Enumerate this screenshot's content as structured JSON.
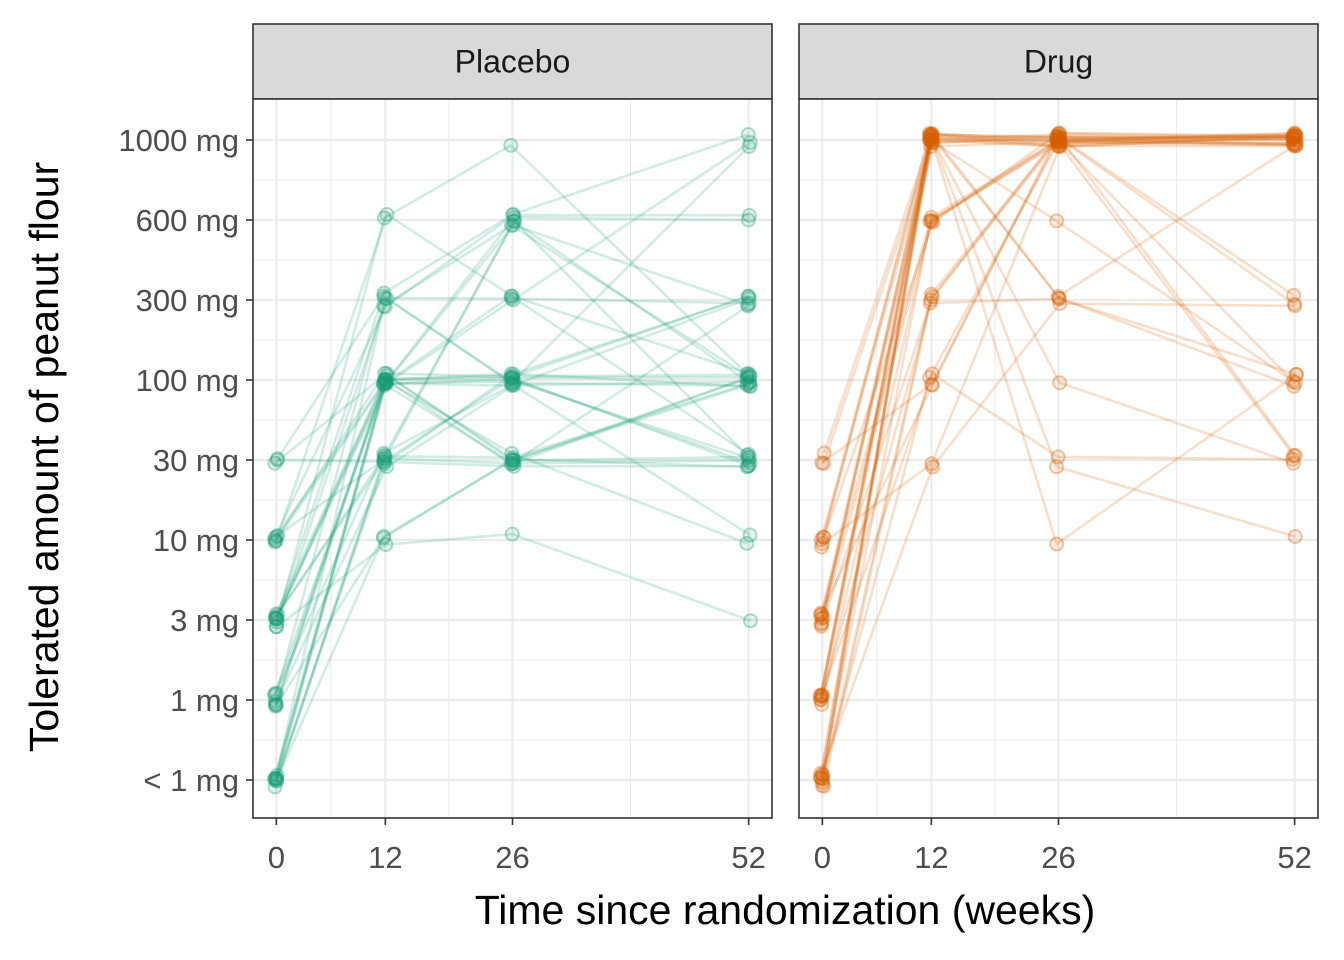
{
  "chart_data": {
    "type": "line",
    "xlabel": "Time since randomization (weeks)",
    "ylabel": "Tolerated amount of peanut flour",
    "x_ticks": [
      0,
      12,
      26,
      52
    ],
    "x_tick_labels": [
      "0",
      "12",
      "26",
      "52"
    ],
    "y_categories": [
      "< 1 mg",
      "1 mg",
      "3 mg",
      "10 mg",
      "30 mg",
      "100 mg",
      "300 mg",
      "600 mg",
      "1000 mg"
    ],
    "grid": true,
    "legend": "none",
    "panels": [
      {
        "name": "Placebo",
        "color": "#1b9e77",
        "series": [
          {
            "x": [
              0,
              12,
              26,
              52
            ],
            "y": [
              "< 1 mg",
              "10 mg",
              "30 mg",
              "100 mg"
            ]
          },
          {
            "x": [
              0,
              12,
              26,
              52
            ],
            "y": [
              "< 1 mg",
              "30 mg",
              "100 mg",
              "300 mg"
            ]
          },
          {
            "x": [
              0,
              12,
              26,
              52
            ],
            "y": [
              "< 1 mg",
              "100 mg",
              "100 mg",
              "100 mg"
            ]
          },
          {
            "x": [
              0,
              12,
              26,
              52
            ],
            "y": [
              "< 1 mg",
              "100 mg",
              "30 mg",
              "30 mg"
            ]
          },
          {
            "x": [
              0,
              12,
              26,
              52
            ],
            "y": [
              "< 1 mg",
              "30 mg",
              "30 mg",
              "100 mg"
            ]
          },
          {
            "x": [
              0,
              12,
              26,
              52
            ],
            "y": [
              "< 1 mg",
              "300 mg",
              "600 mg",
              "100 mg"
            ]
          },
          {
            "x": [
              0,
              12,
              26,
              52
            ],
            "y": [
              "< 1 mg",
              "100 mg",
              "300 mg",
              "30 mg"
            ]
          },
          {
            "x": [
              0,
              12,
              26,
              52
            ],
            "y": [
              "< 1 mg",
              "100 mg",
              "600 mg",
              "600 mg"
            ]
          },
          {
            "x": [
              0,
              12,
              26,
              52
            ],
            "y": [
              "1 mg",
              "100 mg",
              "100 mg",
              "100 mg"
            ]
          },
          {
            "x": [
              0,
              12,
              26,
              52
            ],
            "y": [
              "1 mg",
              "30 mg",
              "100 mg",
              "100 mg"
            ]
          },
          {
            "x": [
              0,
              12,
              26,
              52
            ],
            "y": [
              "1 mg",
              "300 mg",
              "300 mg",
              "300 mg"
            ]
          },
          {
            "x": [
              0,
              12,
              26,
              52
            ],
            "y": [
              "1 mg",
              "10 mg",
              "30 mg",
              "30 mg"
            ]
          },
          {
            "x": [
              0,
              12,
              26,
              52
            ],
            "y": [
              "1 mg",
              "100 mg",
              "30 mg",
              "100 mg"
            ]
          },
          {
            "x": [
              0,
              12,
              26,
              52
            ],
            "y": [
              "1 mg",
              "100 mg",
              "600 mg",
              "300 mg"
            ]
          },
          {
            "x": [
              0,
              12,
              26,
              52
            ],
            "y": [
              "1 mg",
              "30 mg",
              "100 mg",
              "10 mg"
            ]
          },
          {
            "x": [
              0,
              12,
              26,
              52
            ],
            "y": [
              "3 mg",
              "100 mg",
              "100 mg",
              "100 mg"
            ]
          },
          {
            "x": [
              0,
              12,
              26,
              52
            ],
            "y": [
              "3 mg",
              "300 mg",
              "600 mg",
              "1000 mg"
            ]
          },
          {
            "x": [
              0,
              12,
              26,
              52
            ],
            "y": [
              "3 mg",
              "100 mg",
              "30 mg",
              "300 mg"
            ]
          },
          {
            "x": [
              0,
              12,
              26,
              52
            ],
            "y": [
              "3 mg",
              "600 mg",
              "1000 mg",
              "100 mg"
            ]
          },
          {
            "x": [
              0,
              12,
              26,
              52
            ],
            "y": [
              "3 mg",
              "30 mg",
              "100 mg",
              "30 mg"
            ]
          },
          {
            "x": [
              0,
              12,
              26,
              52
            ],
            "y": [
              "3 mg",
              "100 mg",
              "300 mg",
              "1000 mg"
            ]
          },
          {
            "x": [
              0,
              12,
              26,
              52
            ],
            "y": [
              "3 mg",
              "300 mg",
              "100 mg",
              "100 mg"
            ]
          },
          {
            "x": [
              0,
              12,
              26,
              52
            ],
            "y": [
              "3 mg",
              "10 mg",
              "10 mg",
              "3 mg"
            ]
          },
          {
            "x": [
              0,
              12,
              26,
              52
            ],
            "y": [
              "3 mg",
              "100 mg",
              "100 mg",
              "30 mg"
            ]
          },
          {
            "x": [
              0,
              12,
              26,
              52
            ],
            "y": [
              "10 mg",
              "300 mg",
              "600 mg",
              "600 mg"
            ]
          },
          {
            "x": [
              0,
              12,
              26,
              52
            ],
            "y": [
              "10 mg",
              "100 mg",
              "30 mg",
              "100 mg"
            ]
          },
          {
            "x": [
              0,
              12,
              26,
              52
            ],
            "y": [
              "10 mg",
              "100 mg",
              "100 mg",
              "300 mg"
            ]
          },
          {
            "x": [
              0,
              12,
              26,
              52
            ],
            "y": [
              "10 mg",
              "30 mg",
              "600 mg",
              "30 mg"
            ]
          },
          {
            "x": [
              0,
              12,
              26,
              52
            ],
            "y": [
              "10 mg",
              "100 mg",
              "30 mg",
              "10 mg"
            ]
          },
          {
            "x": [
              0,
              12,
              26,
              52
            ],
            "y": [
              "10 mg",
              "600 mg",
              "300 mg",
              "100 mg"
            ]
          },
          {
            "x": [
              0,
              12,
              26,
              52
            ],
            "y": [
              "30 mg",
              "100 mg",
              "100 mg",
              "300 mg"
            ]
          },
          {
            "x": [
              0,
              12,
              26,
              52
            ],
            "y": [
              "30 mg",
              "30 mg",
              "30 mg",
              "30 mg"
            ]
          },
          {
            "x": [
              0,
              12,
              26,
              52
            ],
            "y": [
              "30 mg",
              "300 mg",
              "100 mg",
              "1000 mg"
            ]
          },
          {
            "x": [
              0,
              12,
              26,
              52
            ],
            "y": [
              "3 mg",
              "30 mg",
              "600 mg",
              "100 mg"
            ]
          },
          {
            "x": [
              0,
              12,
              26,
              52
            ],
            "y": [
              "1 mg",
              "100 mg",
              "100 mg",
              "30 mg"
            ]
          },
          {
            "x": [
              0,
              12,
              26,
              52
            ],
            "y": [
              "< 1 mg",
              "30 mg",
              "30 mg",
              "30 mg"
            ]
          }
        ]
      },
      {
        "name": "Drug",
        "color": "#d95f02",
        "series": [
          {
            "x": [
              0,
              12,
              26,
              52
            ],
            "y": [
              "< 1 mg",
              "1000 mg",
              "1000 mg",
              "1000 mg"
            ]
          },
          {
            "x": [
              0,
              12,
              26,
              52
            ],
            "y": [
              "< 1 mg",
              "1000 mg",
              "1000 mg",
              "1000 mg"
            ]
          },
          {
            "x": [
              0,
              12,
              26,
              52
            ],
            "y": [
              "< 1 mg",
              "1000 mg",
              "1000 mg",
              "1000 mg"
            ]
          },
          {
            "x": [
              0,
              12,
              26,
              52
            ],
            "y": [
              "< 1 mg",
              "600 mg",
              "1000 mg",
              "1000 mg"
            ]
          },
          {
            "x": [
              0,
              12,
              26,
              52
            ],
            "y": [
              "< 1 mg",
              "300 mg",
              "1000 mg",
              "1000 mg"
            ]
          },
          {
            "x": [
              0,
              12,
              26,
              52
            ],
            "y": [
              "< 1 mg",
              "100 mg",
              "1000 mg",
              "1000 mg"
            ]
          },
          {
            "x": [
              0,
              12,
              26,
              52
            ],
            "y": [
              "< 1 mg",
              "30 mg",
              "300 mg",
              "300 mg"
            ]
          },
          {
            "x": [
              0,
              12,
              26,
              52
            ],
            "y": [
              "< 1 mg",
              "1000 mg",
              "300 mg",
              "100 mg"
            ]
          },
          {
            "x": [
              0,
              12,
              26,
              52
            ],
            "y": [
              "1 mg",
              "1000 mg",
              "1000 mg",
              "1000 mg"
            ]
          },
          {
            "x": [
              0,
              12,
              26,
              52
            ],
            "y": [
              "1 mg",
              "1000 mg",
              "1000 mg",
              "1000 mg"
            ]
          },
          {
            "x": [
              0,
              12,
              26,
              52
            ],
            "y": [
              "1 mg",
              "1000 mg",
              "1000 mg",
              "1000 mg"
            ]
          },
          {
            "x": [
              0,
              12,
              26,
              52
            ],
            "y": [
              "1 mg",
              "600 mg",
              "1000 mg",
              "1000 mg"
            ]
          },
          {
            "x": [
              0,
              12,
              26,
              52
            ],
            "y": [
              "1 mg",
              "300 mg",
              "1000 mg",
              "1000 mg"
            ]
          },
          {
            "x": [
              0,
              12,
              26,
              52
            ],
            "y": [
              "1 mg",
              "1000 mg",
              "100 mg",
              "30 mg"
            ]
          },
          {
            "x": [
              0,
              12,
              26,
              52
            ],
            "y": [
              "1 mg",
              "100 mg",
              "30 mg",
              "30 mg"
            ]
          },
          {
            "x": [
              0,
              12,
              26,
              52
            ],
            "y": [
              "3 mg",
              "1000 mg",
              "1000 mg",
              "1000 mg"
            ]
          },
          {
            "x": [
              0,
              12,
              26,
              52
            ],
            "y": [
              "3 mg",
              "1000 mg",
              "1000 mg",
              "1000 mg"
            ]
          },
          {
            "x": [
              0,
              12,
              26,
              52
            ],
            "y": [
              "3 mg",
              "1000 mg",
              "1000 mg",
              "300 mg"
            ]
          },
          {
            "x": [
              0,
              12,
              26,
              52
            ],
            "y": [
              "3 mg",
              "600 mg",
              "1000 mg",
              "1000 mg"
            ]
          },
          {
            "x": [
              0,
              12,
              26,
              52
            ],
            "y": [
              "3 mg",
              "1000 mg",
              "30 mg",
              "10 mg"
            ]
          },
          {
            "x": [
              0,
              12,
              26,
              52
            ],
            "y": [
              "3 mg",
              "300 mg",
              "300 mg",
              "100 mg"
            ]
          },
          {
            "x": [
              0,
              12,
              26,
              52
            ],
            "y": [
              "3 mg",
              "100 mg",
              "1000 mg",
              "1000 mg"
            ]
          },
          {
            "x": [
              0,
              12,
              26,
              52
            ],
            "y": [
              "10 mg",
              "1000 mg",
              "1000 mg",
              "1000 mg"
            ]
          },
          {
            "x": [
              0,
              12,
              26,
              52
            ],
            "y": [
              "10 mg",
              "1000 mg",
              "600 mg",
              "100 mg"
            ]
          },
          {
            "x": [
              0,
              12,
              26,
              52
            ],
            "y": [
              "10 mg",
              "600 mg",
              "1000 mg",
              "1000 mg"
            ]
          },
          {
            "x": [
              0,
              12,
              26,
              52
            ],
            "y": [
              "10 mg",
              "30 mg",
              "1000 mg",
              "30 mg"
            ]
          },
          {
            "x": [
              0,
              12,
              26,
              52
            ],
            "y": [
              "10 mg",
              "1000 mg",
              "300 mg",
              "1000 mg"
            ]
          },
          {
            "x": [
              0,
              12,
              26,
              52
            ],
            "y": [
              "30 mg",
              "1000 mg",
              "1000 mg",
              "1000 mg"
            ]
          },
          {
            "x": [
              0,
              12,
              26,
              52
            ],
            "y": [
              "30 mg",
              "100 mg",
              "1000 mg",
              "1000 mg"
            ]
          },
          {
            "x": [
              0,
              12,
              26,
              52
            ],
            "y": [
              "30 mg",
              "1000 mg",
              "10 mg",
              "100 mg"
            ]
          },
          {
            "x": [
              0,
              12,
              26,
              52
            ],
            "y": [
              "< 1 mg",
              "1000 mg",
              "1000 mg",
              "300 mg"
            ]
          },
          {
            "x": [
              0,
              12,
              26,
              52
            ],
            "y": [
              "1 mg",
              "1000 mg",
              "1000 mg",
              "30 mg"
            ]
          },
          {
            "x": [
              0,
              12,
              26,
              52
            ],
            "y": [
              "3 mg",
              "600 mg",
              "1000 mg",
              "100 mg"
            ]
          },
          {
            "x": [
              0,
              12,
              26,
              52
            ],
            "y": [
              "< 1 mg",
              "300 mg",
              "1000 mg",
              "1000 mg"
            ]
          }
        ]
      }
    ]
  }
}
